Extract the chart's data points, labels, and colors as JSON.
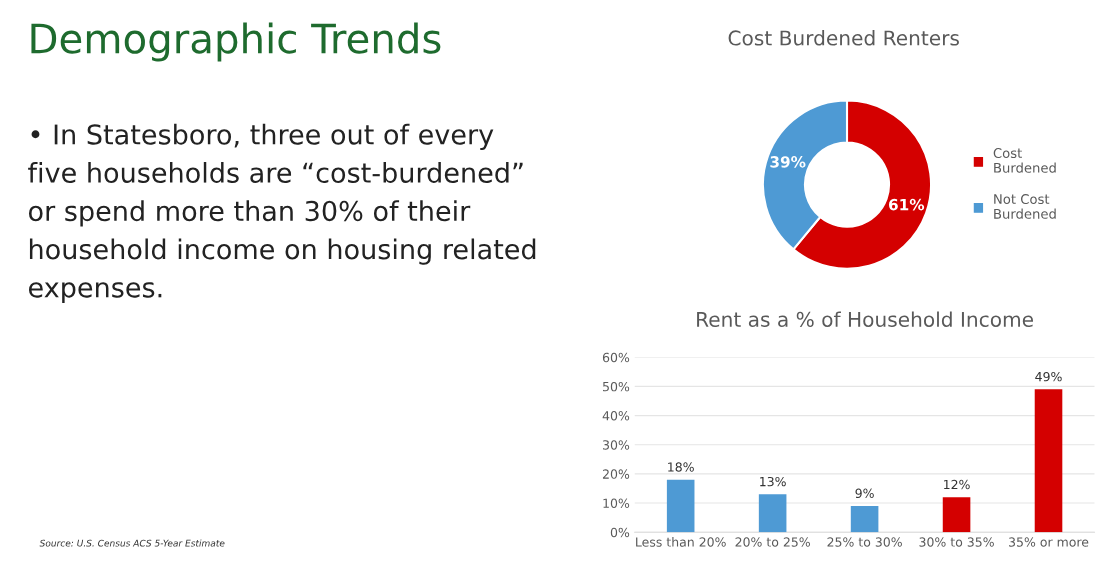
{
  "chart_data": [
    {
      "type": "other",
      "title": "Demographic Trends",
      "annotations": [
        "• In Statesboro, three out of every five households are “cost-burdened” or spend more than 30% of their household income on housing related expenses.",
        "Source: U.S. Census ACS 5-Year Estimate"
      ]
    },
    {
      "type": "donut",
      "title": "Cost Burdened Renters",
      "categories": [
        "Cost Burdened",
        "Not Cost Burdened"
      ],
      "values": [
        61,
        39
      ],
      "colors": [
        "#d40000",
        "#4e9ad4"
      ],
      "value_labels": [
        "61%",
        "39%"
      ],
      "legend": "right"
    },
    {
      "type": "bar",
      "title": "Rent as a % of Household Income",
      "categories": [
        "Less than 20%",
        "20% to 25%",
        "25% to 30%",
        "30% to 35%",
        "35% or more"
      ],
      "values": [
        18,
        13,
        9,
        12,
        49
      ],
      "colors": [
        "#4e9ad4",
        "#4e9ad4",
        "#4e9ad4",
        "#d40000",
        "#d40000"
      ],
      "value_labels": [
        "18%",
        "13%",
        "9%",
        "12%",
        "49%"
      ],
      "ylim": [
        0,
        60
      ],
      "yticks": [
        {
          "value": 0,
          "label": "0%"
        },
        {
          "value": 10,
          "label": "10%"
        },
        {
          "value": 20,
          "label": "20%"
        },
        {
          "value": 30,
          "label": "30%"
        },
        {
          "value": 40,
          "label": "40%"
        },
        {
          "value": 50,
          "label": "50%"
        },
        {
          "value": 60,
          "label": "60%"
        }
      ],
      "grid": "y"
    }
  ]
}
